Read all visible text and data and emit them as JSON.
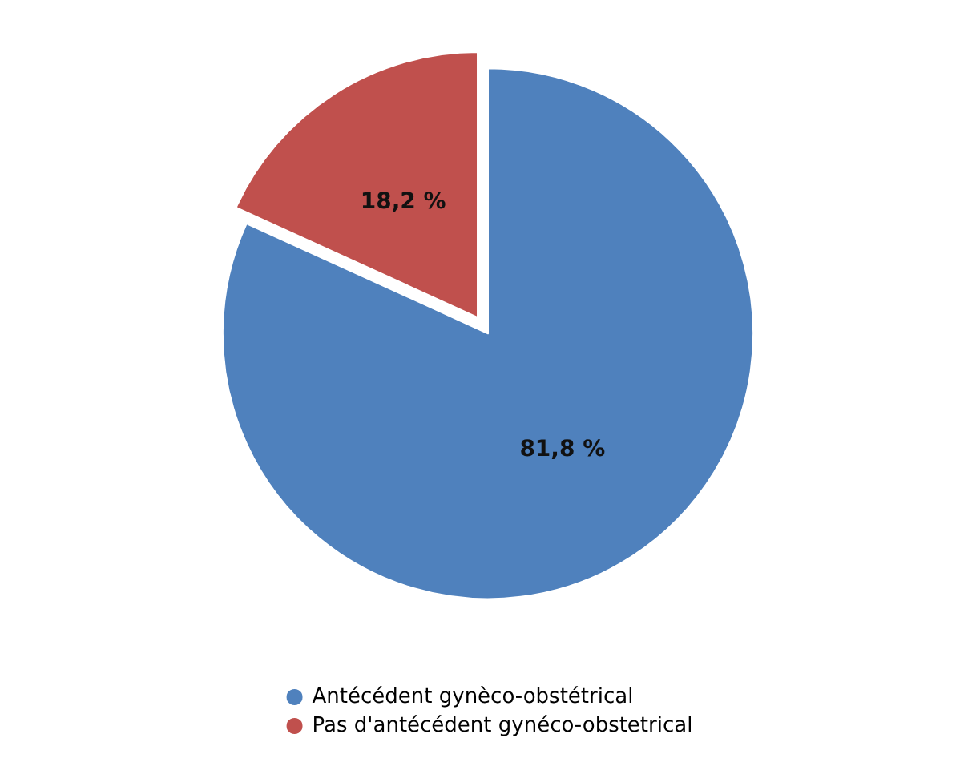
{
  "chart_data": {
    "type": "pie",
    "categories": [
      "Antécédent gynèco-obstétrical",
      "Pas d'antécédent gynéco-obstetrical"
    ],
    "values": [
      81.8,
      18.2
    ],
    "colors": [
      "#4f81bd",
      "#c0504d"
    ],
    "value_labels": [
      "81,8 %",
      "18,2 %"
    ],
    "legend": "bottom"
  }
}
